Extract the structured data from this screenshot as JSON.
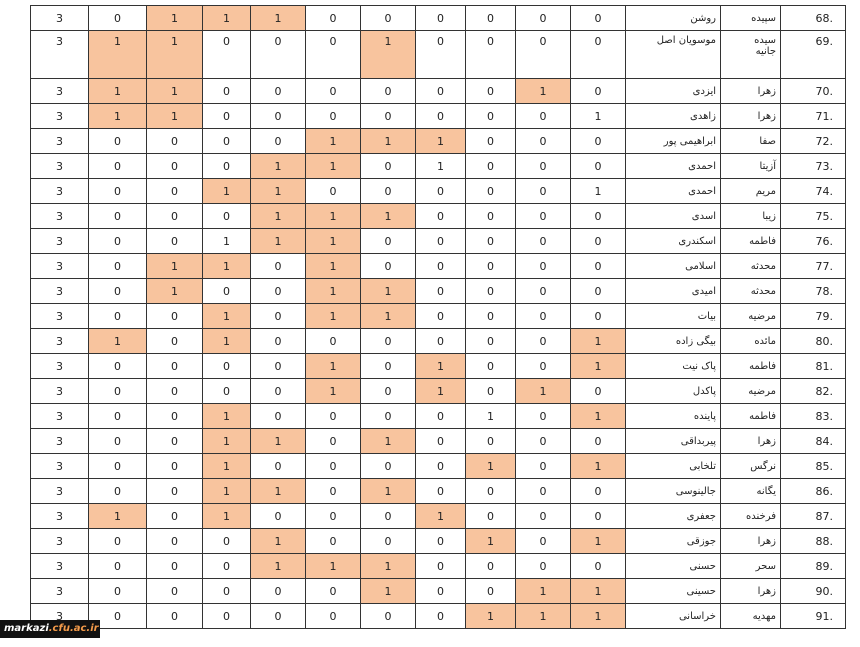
{
  "table": {
    "rows": [
      {
        "cells": [
          3,
          0,
          1,
          1,
          1,
          0,
          0,
          0,
          0,
          0,
          0,
          "روشن",
          "سپیده",
          "68."
        ],
        "highlighted": [
          2,
          3,
          4
        ]
      },
      {
        "cells": [
          3,
          1,
          1,
          0,
          0,
          0,
          1,
          0,
          0,
          0,
          0,
          "موسویان اصل",
          "سیده\nجانیه",
          "69."
        ],
        "highlighted": [
          1,
          2,
          6
        ]
      },
      {
        "cells": [
          3,
          1,
          1,
          0,
          0,
          0,
          0,
          0,
          0,
          1,
          0,
          "ایزدی",
          "زهرا",
          "70."
        ],
        "highlighted": [
          1,
          2,
          9
        ]
      },
      {
        "cells": [
          3,
          1,
          1,
          0,
          0,
          0,
          0,
          0,
          0,
          0,
          1,
          "زاهدی",
          "زهرا",
          "71."
        ],
        "highlighted": [
          1,
          2
        ]
      },
      {
        "cells": [
          3,
          0,
          0,
          0,
          0,
          1,
          1,
          1,
          0,
          0,
          0,
          "ابراهیمی پور",
          "صفا",
          "72."
        ],
        "highlighted": [
          5,
          6,
          7
        ]
      },
      {
        "cells": [
          3,
          0,
          0,
          0,
          1,
          1,
          0,
          1,
          0,
          0,
          0,
          "احمدی",
          "آزیتا",
          "73."
        ],
        "highlighted": [
          4,
          5
        ]
      },
      {
        "cells": [
          3,
          0,
          0,
          1,
          1,
          0,
          0,
          0,
          0,
          0,
          1,
          "احمدی",
          "مریم",
          "74."
        ],
        "highlighted": [
          3,
          4
        ]
      },
      {
        "cells": [
          3,
          0,
          0,
          0,
          1,
          1,
          1,
          0,
          0,
          0,
          0,
          "اسدی",
          "زیبا",
          "75."
        ],
        "highlighted": [
          4,
          5,
          6
        ]
      },
      {
        "cells": [
          3,
          0,
          0,
          1,
          1,
          1,
          0,
          0,
          0,
          0,
          0,
          "اسکندری",
          "فاطمه",
          "76."
        ],
        "highlighted": [
          4,
          5
        ]
      },
      {
        "cells": [
          3,
          0,
          1,
          1,
          0,
          1,
          0,
          0,
          0,
          0,
          0,
          "اسلامی",
          "محدثه",
          "77."
        ],
        "highlighted": [
          2,
          3,
          5
        ]
      },
      {
        "cells": [
          3,
          0,
          1,
          0,
          0,
          1,
          1,
          0,
          0,
          0,
          0,
          "امیدی",
          "محدثه",
          "78."
        ],
        "highlighted": [
          2,
          5,
          6
        ]
      },
      {
        "cells": [
          3,
          0,
          0,
          1,
          0,
          1,
          1,
          0,
          0,
          0,
          0,
          "بیات",
          "مرضیه",
          "79."
        ],
        "highlighted": [
          3,
          5,
          6
        ]
      },
      {
        "cells": [
          3,
          1,
          0,
          1,
          0,
          0,
          0,
          0,
          0,
          0,
          1,
          "بیگی زاده",
          "مائده",
          "80."
        ],
        "highlighted": [
          1,
          3,
          10
        ]
      },
      {
        "cells": [
          3,
          0,
          0,
          0,
          0,
          1,
          0,
          1,
          0,
          0,
          1,
          "پاک نیت",
          "فاطمه",
          "81."
        ],
        "highlighted": [
          5,
          7,
          10
        ]
      },
      {
        "cells": [
          3,
          0,
          0,
          0,
          0,
          1,
          0,
          1,
          0,
          1,
          0,
          "پاکدل",
          "مرضیه",
          "82."
        ],
        "highlighted": [
          5,
          7,
          9
        ]
      },
      {
        "cells": [
          3,
          0,
          0,
          1,
          0,
          0,
          0,
          0,
          1,
          0,
          1,
          "پاینده",
          "فاطمه",
          "83."
        ],
        "highlighted": [
          3,
          10
        ]
      },
      {
        "cells": [
          3,
          0,
          0,
          1,
          1,
          0,
          1,
          0,
          0,
          0,
          0,
          "پیربداقی",
          "زهرا",
          "84."
        ],
        "highlighted": [
          3,
          4,
          6
        ]
      },
      {
        "cells": [
          3,
          0,
          0,
          1,
          0,
          0,
          0,
          0,
          1,
          0,
          1,
          "تلخابی",
          "نرگس",
          "85."
        ],
        "highlighted": [
          3,
          8,
          10
        ]
      },
      {
        "cells": [
          3,
          0,
          0,
          1,
          1,
          0,
          1,
          0,
          0,
          0,
          0,
          "جالینوسی",
          "یگانه",
          "86."
        ],
        "highlighted": [
          3,
          4,
          6
        ]
      },
      {
        "cells": [
          3,
          1,
          0,
          1,
          0,
          0,
          0,
          1,
          0,
          0,
          0,
          "جعفری",
          "فرخنده",
          "87."
        ],
        "highlighted": [
          1,
          3,
          7
        ]
      },
      {
        "cells": [
          3,
          0,
          0,
          0,
          1,
          0,
          0,
          0,
          1,
          0,
          1,
          "جوزقی",
          "زهرا",
          "88."
        ],
        "highlighted": [
          4,
          8,
          10
        ]
      },
      {
        "cells": [
          3,
          0,
          0,
          0,
          1,
          1,
          1,
          0,
          0,
          0,
          0,
          "حسنی",
          "سحر",
          "89."
        ],
        "highlighted": [
          4,
          5,
          6
        ]
      },
      {
        "cells": [
          3,
          0,
          0,
          0,
          0,
          0,
          1,
          0,
          0,
          1,
          1,
          "حسینی",
          "زهرا",
          "90."
        ],
        "highlighted": [
          6,
          9,
          10
        ]
      },
      {
        "cells": [
          3,
          0,
          0,
          0,
          0,
          0,
          0,
          0,
          1,
          1,
          1,
          "خراسانی",
          "مهدیه",
          "91."
        ],
        "highlighted": [
          8,
          9,
          10
        ]
      }
    ]
  },
  "watermark": {
    "site": "markazi",
    "domain": ".cfu.ac.ir"
  }
}
